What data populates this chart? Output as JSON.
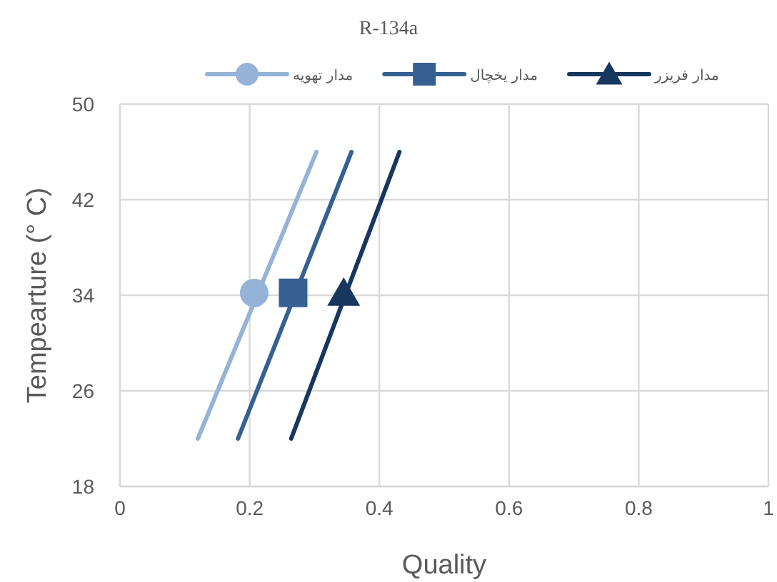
{
  "chart_data": {
    "type": "line",
    "title": "R-134a",
    "xlabel": "Quality",
    "ylabel": "Tempearture (° C)",
    "xlim": [
      0,
      1
    ],
    "xticks": [
      0,
      0.2,
      0.4,
      0.6,
      0.8,
      1
    ],
    "ylim": [
      18,
      50
    ],
    "yticks": [
      18,
      26,
      34,
      42,
      50
    ],
    "grid": true,
    "legend": "top",
    "line_style": "solid",
    "series": [
      {
        "name": "مدار تهویه",
        "color": "#95b3d7",
        "x": [
          0.12,
          0.303
        ],
        "values": [
          22,
          46
        ]
      },
      {
        "name": "مدار یخچال",
        "color": "#366092",
        "x": [
          0.182,
          0.357
        ],
        "values": [
          22,
          46
        ]
      },
      {
        "name": "مدار فریزر",
        "color": "#17375e",
        "x": [
          0.264,
          0.431
        ],
        "values": [
          22,
          46
        ]
      },
      {
        "type": "scatter",
        "color": "#95b3d7",
        "x": [
          0.207
        ],
        "values": [
          34.2
        ],
        "marker": "circle"
      },
      {
        "type": "scatter",
        "color": "#366092",
        "x": [
          0.267
        ],
        "values": [
          34.2
        ],
        "marker": "square"
      },
      {
        "type": "scatter",
        "color": "#17375e",
        "x": [
          0.345
        ],
        "values": [
          34.2
        ],
        "marker": "triangle"
      }
    ]
  }
}
